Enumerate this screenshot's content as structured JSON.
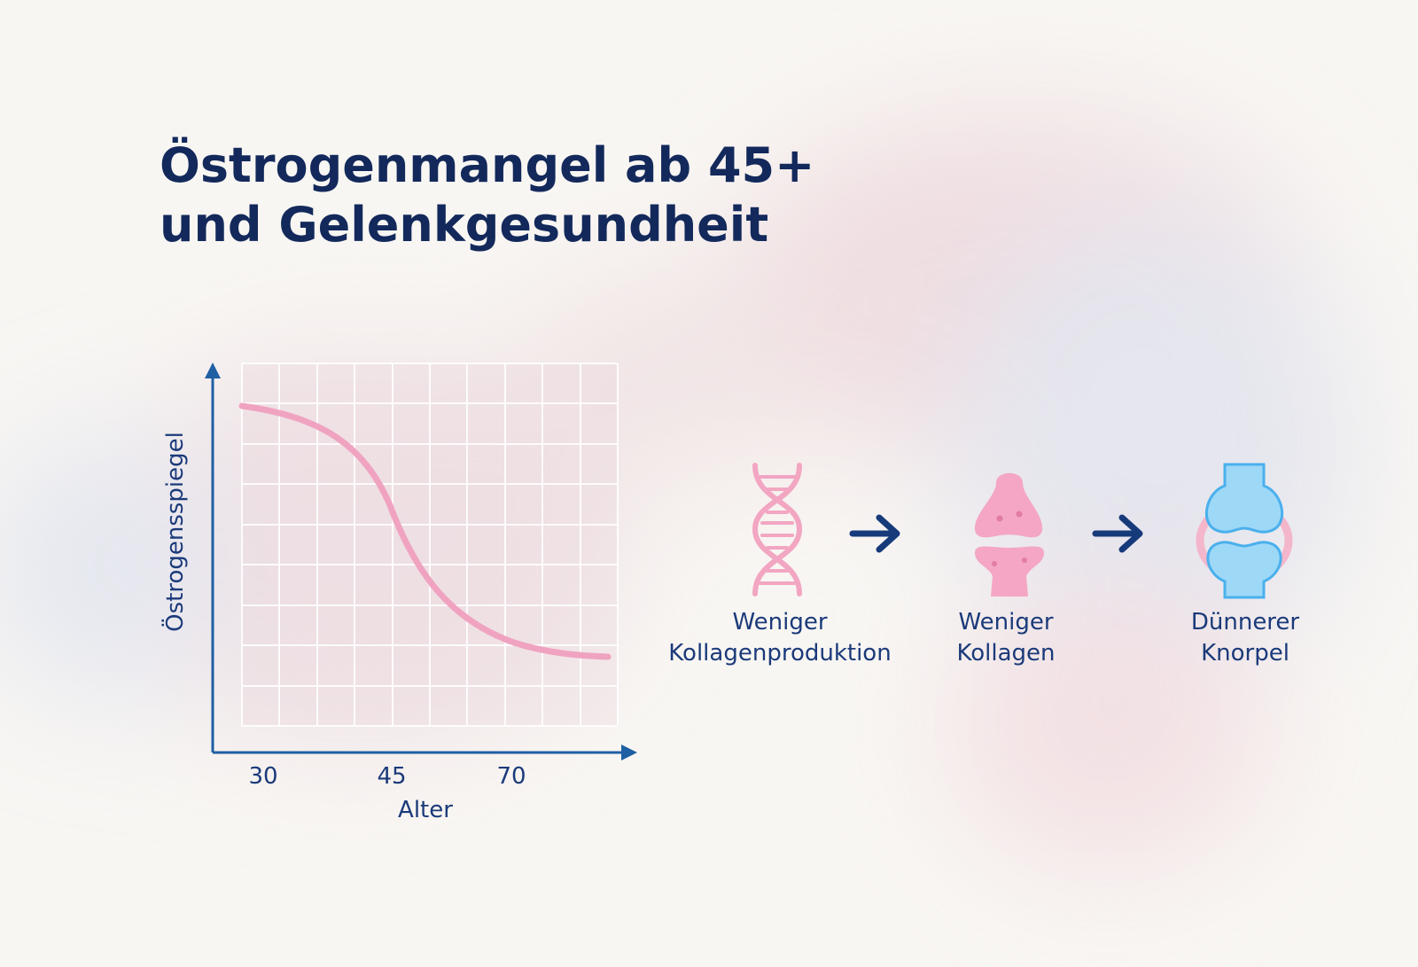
{
  "header": {
    "title": [
      "Östrogenmangel ab 45+",
      "und Gelenkgesundheit"
    ]
  },
  "chart": {
    "y_axis_label": "Östrogensspiegel",
    "x_axis_label": "Alter",
    "x_tick_labels": [
      30,
      45,
      70
    ]
  },
  "steps": [
    {
      "label": [
        "Weniger",
        "Kollagenproduktion"
      ]
    },
    {
      "label": [
        "Weniger",
        "Kollagen"
      ]
    },
    {
      "label": [
        "Dünnerer",
        "Knorpel"
      ]
    }
  ]
}
